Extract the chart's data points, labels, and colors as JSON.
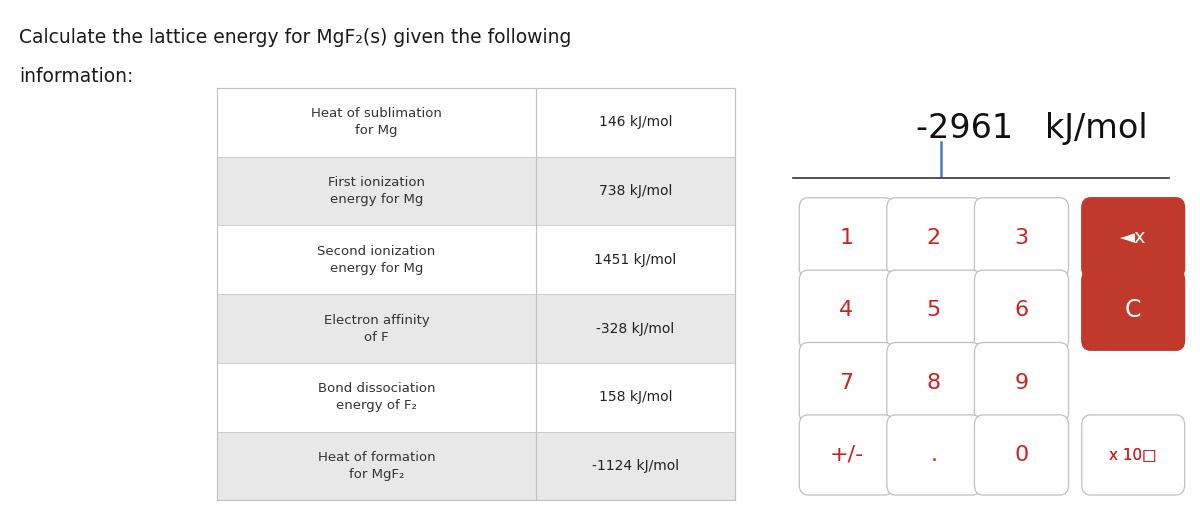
{
  "title_line1": "Calculate the lattice energy for MgF₂(s) given the following",
  "title_line2": "information:",
  "title_fontsize": 13.5,
  "bg_color_left": "#ffffff",
  "bg_color_right": "#e9e9e9",
  "table_rows": [
    {
      "label": "Heat of sublimation\nfor Mg",
      "value": "146 kJ/mol",
      "row_bg": "#ffffff"
    },
    {
      "label": "First ionization\nenergy for Mg",
      "value": "738 kJ/mol",
      "row_bg": "#e8e8e8"
    },
    {
      "label": "Second ionization\nenergy for Mg",
      "value": "1451 kJ/mol",
      "row_bg": "#ffffff"
    },
    {
      "label": "Electron affinity\nof F",
      "value": "-328 kJ/mol",
      "row_bg": "#e8e8e8"
    },
    {
      "label": "Bond dissociation\nenergy of F₂",
      "value": "158 kJ/mol",
      "row_bg": "#ffffff"
    },
    {
      "label": "Heat of formation\nfor MgF₂",
      "value": "-1124 kJ/mol",
      "row_bg": "#e8e8e8"
    }
  ],
  "display_text": "-2961   kJ/mol",
  "display_fontsize": 24,
  "calc_bg": "#e9e9e9",
  "button_normal_bg": "#ffffff",
  "button_normal_fg": "#cc2222",
  "button_red_bg": "#c0392b",
  "button_red_fg": "#ffffff",
  "button_border": "#c0c0c0",
  "buttons_row1": [
    "1",
    "2",
    "3"
  ],
  "buttons_row2": [
    "4",
    "5",
    "6"
  ],
  "buttons_row3": [
    "7",
    "8",
    "9"
  ],
  "buttons_row4": [
    "+/-",
    ".",
    "0"
  ],
  "backspace_label": "◄x",
  "clear_label": "C",
  "x10_label": "x 10□",
  "cursor_color": "#4a7fbd"
}
